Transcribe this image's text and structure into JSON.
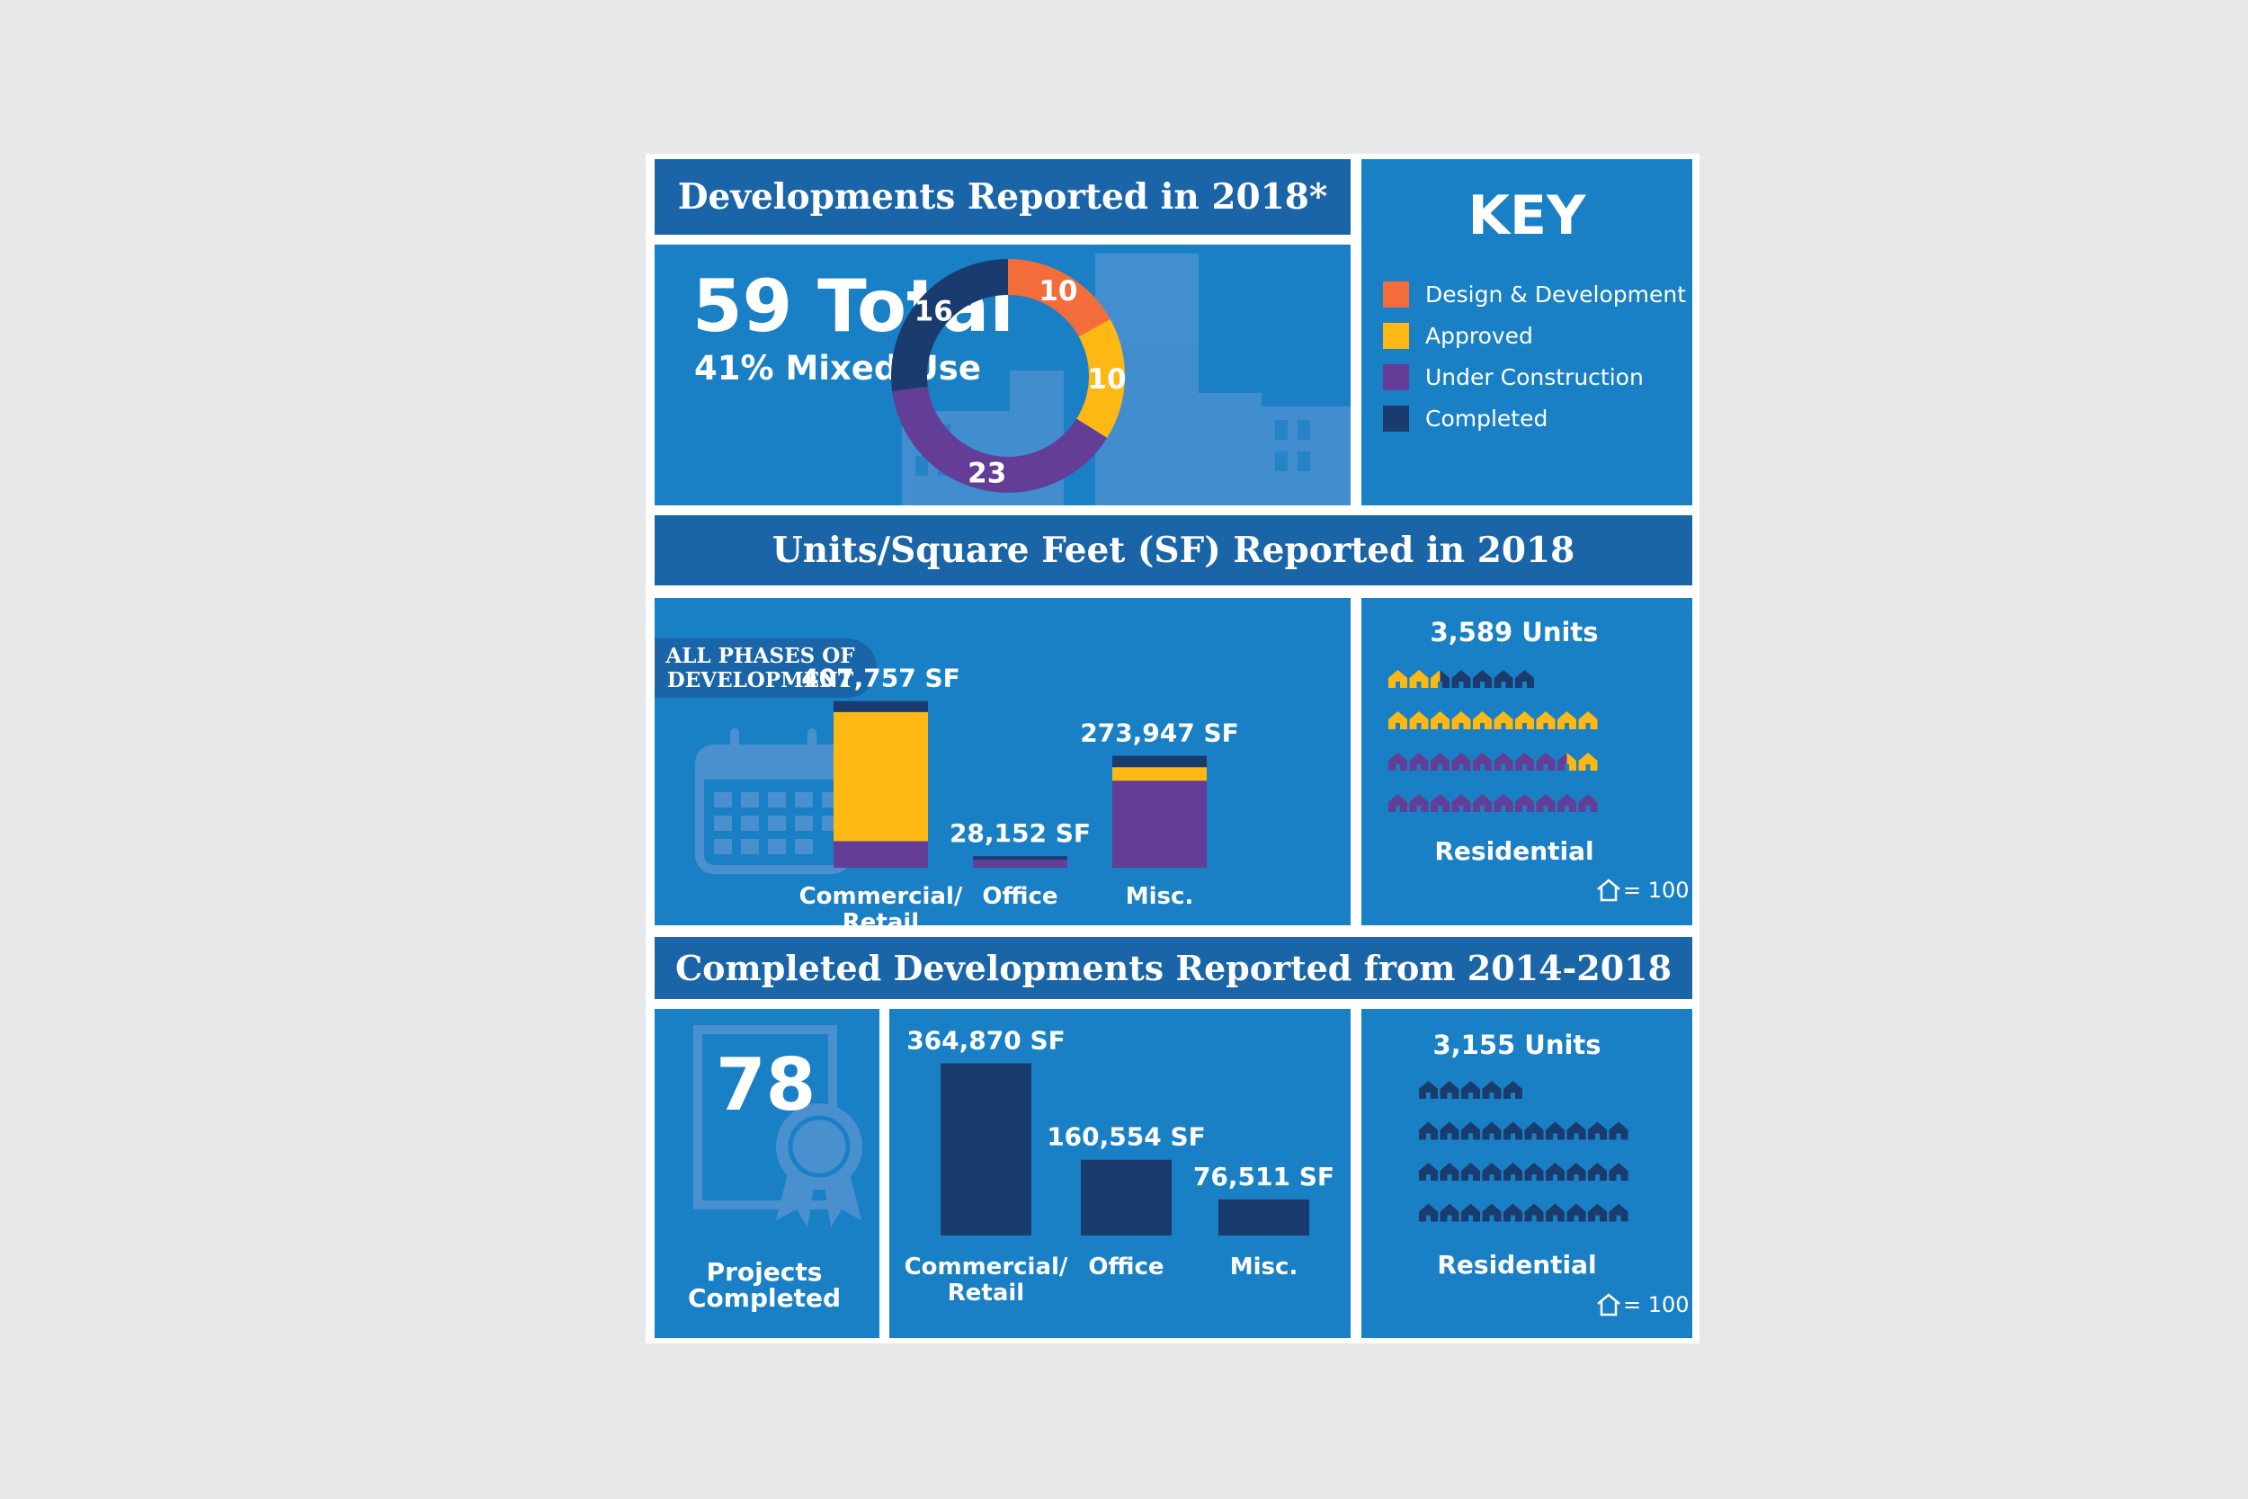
{
  "colors": {
    "design": "#f36d3a",
    "approved": "#fdb813",
    "construction": "#633d96",
    "completed": "#1a3b6e",
    "panel": "#1a80c5",
    "band": "#1a64a8"
  },
  "section1": {
    "title": "Developments Reported in 2018*",
    "total": "59 Total",
    "mixed": "41% Mixed-Use"
  },
  "key": {
    "title": "KEY",
    "items": [
      {
        "label": "Design & Development",
        "color": "#f36d3a"
      },
      {
        "label": "Approved",
        "color": "#fdb813"
      },
      {
        "label": "Under Construction",
        "color": "#633d96"
      },
      {
        "label": "Completed",
        "color": "#1a3b6e"
      }
    ]
  },
  "section2": {
    "title": "Units/Square Feet (SF) Reported in 2018",
    "badge_line1": "ALL PHASES OF",
    "badge_line2": "DEVELOPMENT",
    "units_title": "3,589 Units",
    "residential": "Residential",
    "legend_value": "= 100"
  },
  "section3": {
    "title": "Completed Developments Reported from 2014-2018",
    "projects_count": "78",
    "projects_line1": "Projects",
    "projects_line2": "Completed",
    "units_title": "3,155 Units",
    "residential": "Residential",
    "legend_value": "= 100"
  },
  "chart_data": [
    {
      "type": "pie",
      "title": "",
      "slices": [
        {
          "label": "Design & Development",
          "value": 10
        },
        {
          "label": "Approved",
          "value": 10
        },
        {
          "label": "Under Construction",
          "value": 23
        },
        {
          "label": "Completed",
          "value": 16
        }
      ]
    },
    {
      "type": "bar",
      "stacked": true,
      "categories": [
        "Commercial/ Retail",
        "Office",
        "Misc."
      ],
      "category_lines": [
        [
          "Commercial/",
          "Retail"
        ],
        [
          "Office"
        ],
        [
          "Misc."
        ]
      ],
      "totals": [
        "407,757 SF",
        "28,152 SF",
        "273,947 SF"
      ],
      "total_values": [
        407757,
        28152,
        273947
      ],
      "series": [
        {
          "name": "Under Construction",
          "values": [
            65000,
            20000,
            213000
          ]
        },
        {
          "name": "Approved",
          "values": [
            316000,
            0,
            33000
          ]
        },
        {
          "name": "Completed",
          "values": [
            26757,
            8152,
            27947
          ]
        }
      ],
      "ylim": [
        0,
        440000
      ]
    },
    {
      "type": "bar",
      "categories": [
        "Commercial/ Retail",
        "Office",
        "Misc."
      ],
      "category_lines": [
        [
          "Commercial/",
          "Retail"
        ],
        [
          "Office"
        ],
        [
          "Misc."
        ]
      ],
      "totals": [
        "364,870 SF",
        "160,554 SF",
        "76,511 SF"
      ],
      "values": [
        364870,
        160554,
        76511
      ],
      "ylim": [
        0,
        400000
      ]
    },
    {
      "type": "pictogram",
      "title": "3,589 Units",
      "unit": 100,
      "rows": [
        [
          "approved",
          "approved",
          "approved-completed",
          "completed",
          "completed",
          "completed",
          "completed"
        ],
        [
          "approved",
          "approved",
          "approved",
          "approved",
          "approved",
          "approved",
          "approved",
          "approved",
          "approved",
          "approved"
        ],
        [
          "construction",
          "construction",
          "construction",
          "construction",
          "construction",
          "construction",
          "construction",
          "construction",
          "construction-approved",
          "approved"
        ],
        [
          "construction",
          "construction",
          "construction",
          "construction",
          "construction",
          "construction",
          "construction",
          "construction",
          "construction",
          "construction"
        ]
      ]
    },
    {
      "type": "pictogram",
      "title": "3,155 Units",
      "unit": 100,
      "rows": [
        [
          "completed",
          "completed",
          "completed",
          "completed",
          "completed"
        ],
        [
          "completed",
          "completed",
          "completed",
          "completed",
          "completed",
          "completed",
          "completed",
          "completed",
          "completed",
          "completed"
        ],
        [
          "completed",
          "completed",
          "completed",
          "completed",
          "completed",
          "completed",
          "completed",
          "completed",
          "completed",
          "completed"
        ],
        [
          "completed",
          "completed",
          "completed",
          "completed",
          "completed",
          "completed",
          "completed",
          "completed",
          "completed",
          "completed"
        ]
      ]
    }
  ]
}
